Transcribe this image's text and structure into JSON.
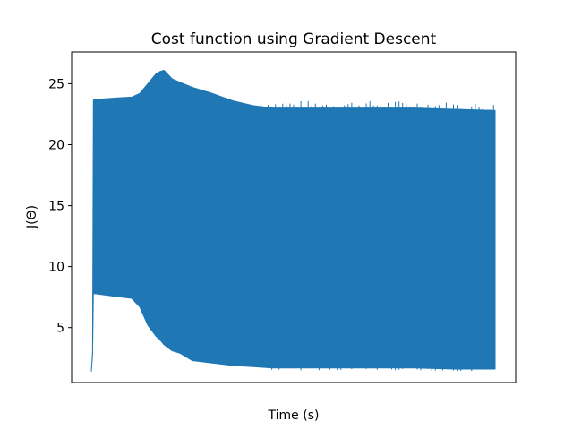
{
  "chart_data": {
    "type": "area",
    "title": "Cost function using Gradient Descent",
    "xlabel": "Time (s)",
    "ylabel": "J(Θ)",
    "ylim": [
      0.5,
      27.6
    ],
    "xlim": [
      0,
      100
    ],
    "x_ticks_visible": false,
    "y_ticks": [
      5,
      10,
      15,
      20,
      25
    ],
    "grid": false,
    "color": "#1f77b4",
    "series": [
      {
        "x": [
          0,
          0.3,
          0.5,
          0.6,
          5,
          10,
          12,
          14,
          16,
          17,
          18,
          20,
          22,
          25,
          30,
          35,
          40,
          45,
          50,
          60,
          70,
          80,
          90,
          100
        ],
        "upper": [
          1.4,
          3.0,
          23.6,
          23.7,
          23.8,
          23.9,
          24.2,
          25.0,
          25.8,
          26.0,
          26.1,
          25.4,
          25.1,
          24.7,
          24.2,
          23.6,
          23.2,
          23.0,
          23.0,
          23.0,
          23.0,
          23.0,
          22.9,
          22.8
        ],
        "lower": [
          1.4,
          2.8,
          7.8,
          7.8,
          7.6,
          7.4,
          6.7,
          5.2,
          4.3,
          4.0,
          3.6,
          3.1,
          2.9,
          2.3,
          2.1,
          1.9,
          1.8,
          1.7,
          1.7,
          1.7,
          1.7,
          1.7,
          1.6,
          1.6
        ]
      }
    ]
  }
}
